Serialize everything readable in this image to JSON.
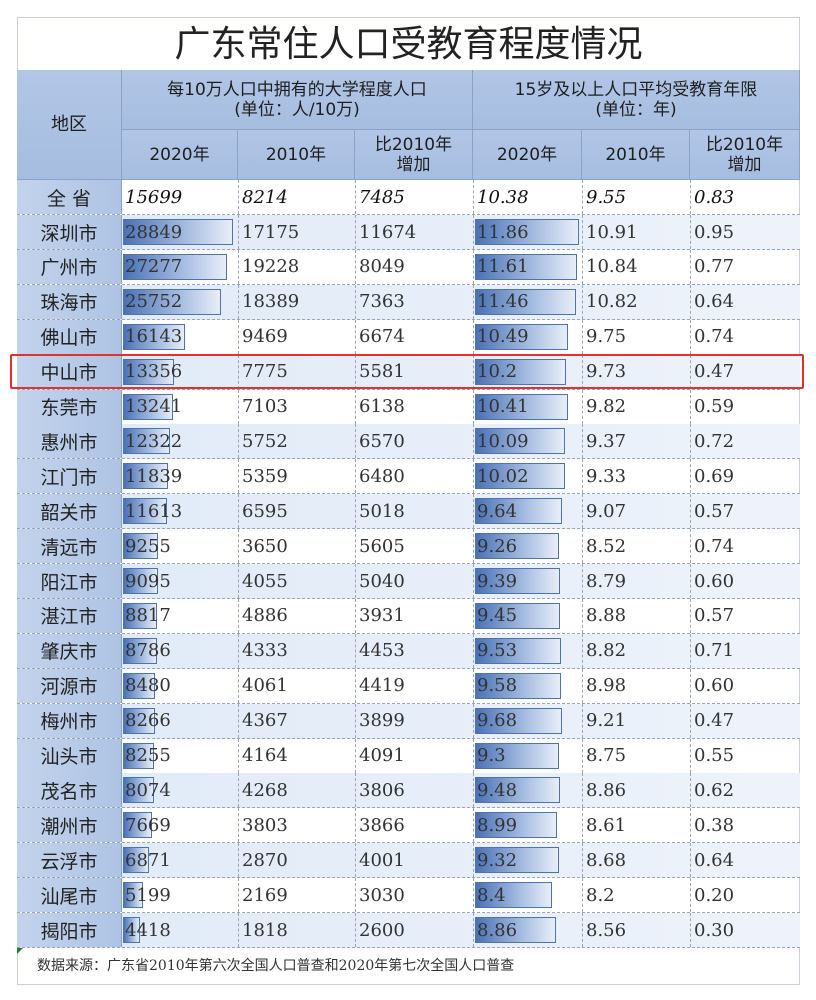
{
  "title": "广东常住人口受教育程度情况",
  "header": {
    "region": "地区",
    "group1": "每10万人口中拥有的大学程度人口",
    "group1_unit": "(单位：人/10万)",
    "group2": "15岁及以上人口平均受教育年限",
    "group2_unit": "(单位：年)",
    "sub": [
      "2020年",
      "2010年",
      "比2010年增加",
      "2020年",
      "2010年",
      "比2010年增加"
    ]
  },
  "highlight_row": "中山市",
  "colors": {
    "highlight": "#e3322b",
    "header": "#a9bfe0",
    "bar": "#4b72b5"
  },
  "chart_data": {
    "type": "table",
    "title": "广东常住人口受教育程度情况",
    "columns": [
      "地区",
      "每10万人口中拥有的大学程度人口 2020年",
      "2010年",
      "比2010年增加",
      "15岁及以上人口平均受教育年限 2020年",
      "2010年",
      "比2010年增加"
    ],
    "total": {
      "region": "全 省",
      "values": [
        "15699",
        "8214",
        "7485",
        "10.38",
        "9.55",
        "0.83"
      ]
    },
    "rows": [
      {
        "region": "深圳市",
        "values": [
          "28849",
          "17175",
          "11674",
          "11.86",
          "10.91",
          "0.95"
        ]
      },
      {
        "region": "广州市",
        "values": [
          "27277",
          "19228",
          "8049",
          "11.61",
          "10.84",
          "0.77"
        ]
      },
      {
        "region": "珠海市",
        "values": [
          "25752",
          "18389",
          "7363",
          "11.46",
          "10.82",
          "0.64"
        ]
      },
      {
        "region": "佛山市",
        "values": [
          "16143",
          "9469",
          "6674",
          "10.49",
          "9.75",
          "0.74"
        ]
      },
      {
        "region": "中山市",
        "values": [
          "13356",
          "7775",
          "5581",
          "10.2",
          "9.73",
          "0.47"
        ]
      },
      {
        "region": "东莞市",
        "values": [
          "13241",
          "7103",
          "6138",
          "10.41",
          "9.82",
          "0.59"
        ]
      },
      {
        "region": "惠州市",
        "values": [
          "12322",
          "5752",
          "6570",
          "10.09",
          "9.37",
          "0.72"
        ]
      },
      {
        "region": "江门市",
        "values": [
          "11839",
          "5359",
          "6480",
          "10.02",
          "9.33",
          "0.69"
        ]
      },
      {
        "region": "韶关市",
        "values": [
          "11613",
          "6595",
          "5018",
          "9.64",
          "9.07",
          "0.57"
        ]
      },
      {
        "region": "清远市",
        "values": [
          "9255",
          "3650",
          "5605",
          "9.26",
          "8.52",
          "0.74"
        ]
      },
      {
        "region": "阳江市",
        "values": [
          "9095",
          "4055",
          "5040",
          "9.39",
          "8.79",
          "0.60"
        ]
      },
      {
        "region": "湛江市",
        "values": [
          "8817",
          "4886",
          "3931",
          "9.45",
          "8.88",
          "0.57"
        ]
      },
      {
        "region": "肇庆市",
        "values": [
          "8786",
          "4333",
          "4453",
          "9.53",
          "8.82",
          "0.71"
        ]
      },
      {
        "region": "河源市",
        "values": [
          "8480",
          "4061",
          "4419",
          "9.58",
          "8.98",
          "0.60"
        ]
      },
      {
        "region": "梅州市",
        "values": [
          "8266",
          "4367",
          "3899",
          "9.68",
          "9.21",
          "0.47"
        ]
      },
      {
        "region": "汕头市",
        "values": [
          "8255",
          "4164",
          "4091",
          "9.3",
          "8.75",
          "0.55"
        ]
      },
      {
        "region": "茂名市",
        "values": [
          "8074",
          "4268",
          "3806",
          "9.48",
          "8.86",
          "0.62"
        ]
      },
      {
        "region": "潮州市",
        "values": [
          "7669",
          "3803",
          "3866",
          "8.99",
          "8.61",
          "0.38"
        ]
      },
      {
        "region": "云浮市",
        "values": [
          "6871",
          "2870",
          "4001",
          "9.32",
          "8.68",
          "0.64"
        ]
      },
      {
        "region": "汕尾市",
        "values": [
          "5199",
          "2169",
          "3030",
          "8.4",
          "8.2",
          "0.20"
        ]
      },
      {
        "region": "揭阳市",
        "values": [
          "4418",
          "1818",
          "2600",
          "8.86",
          "8.56",
          "0.30"
        ]
      }
    ]
  },
  "footer": "数据来源：广东省2010年第六次全国人口普查和2020年第七次全国人口普查"
}
